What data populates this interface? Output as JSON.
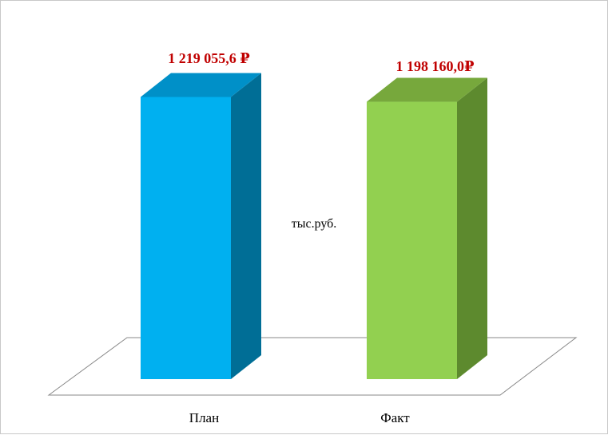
{
  "chart_data": {
    "type": "bar",
    "style": "3d-column",
    "categories": [
      "План",
      "Факт"
    ],
    "values": [
      1219055.6,
      1198160.0
    ],
    "data_labels": [
      "1 219 055,6 ₽",
      "1 198 160,0₽"
    ],
    "unit_label": "тыс.руб.",
    "title": "",
    "xlabel": "",
    "ylabel": "",
    "ylim": [
      0,
      1400000
    ],
    "grid": false,
    "legend": "none",
    "colors": {
      "bars": [
        {
          "front": "#00b0f0",
          "side": "#006e96",
          "top": "#0090c8"
        },
        {
          "front": "#92d050",
          "side": "#5d8a2e",
          "top": "#77a83c"
        }
      ],
      "data_label": "#c00000",
      "floor_stroke": "#888888"
    }
  }
}
